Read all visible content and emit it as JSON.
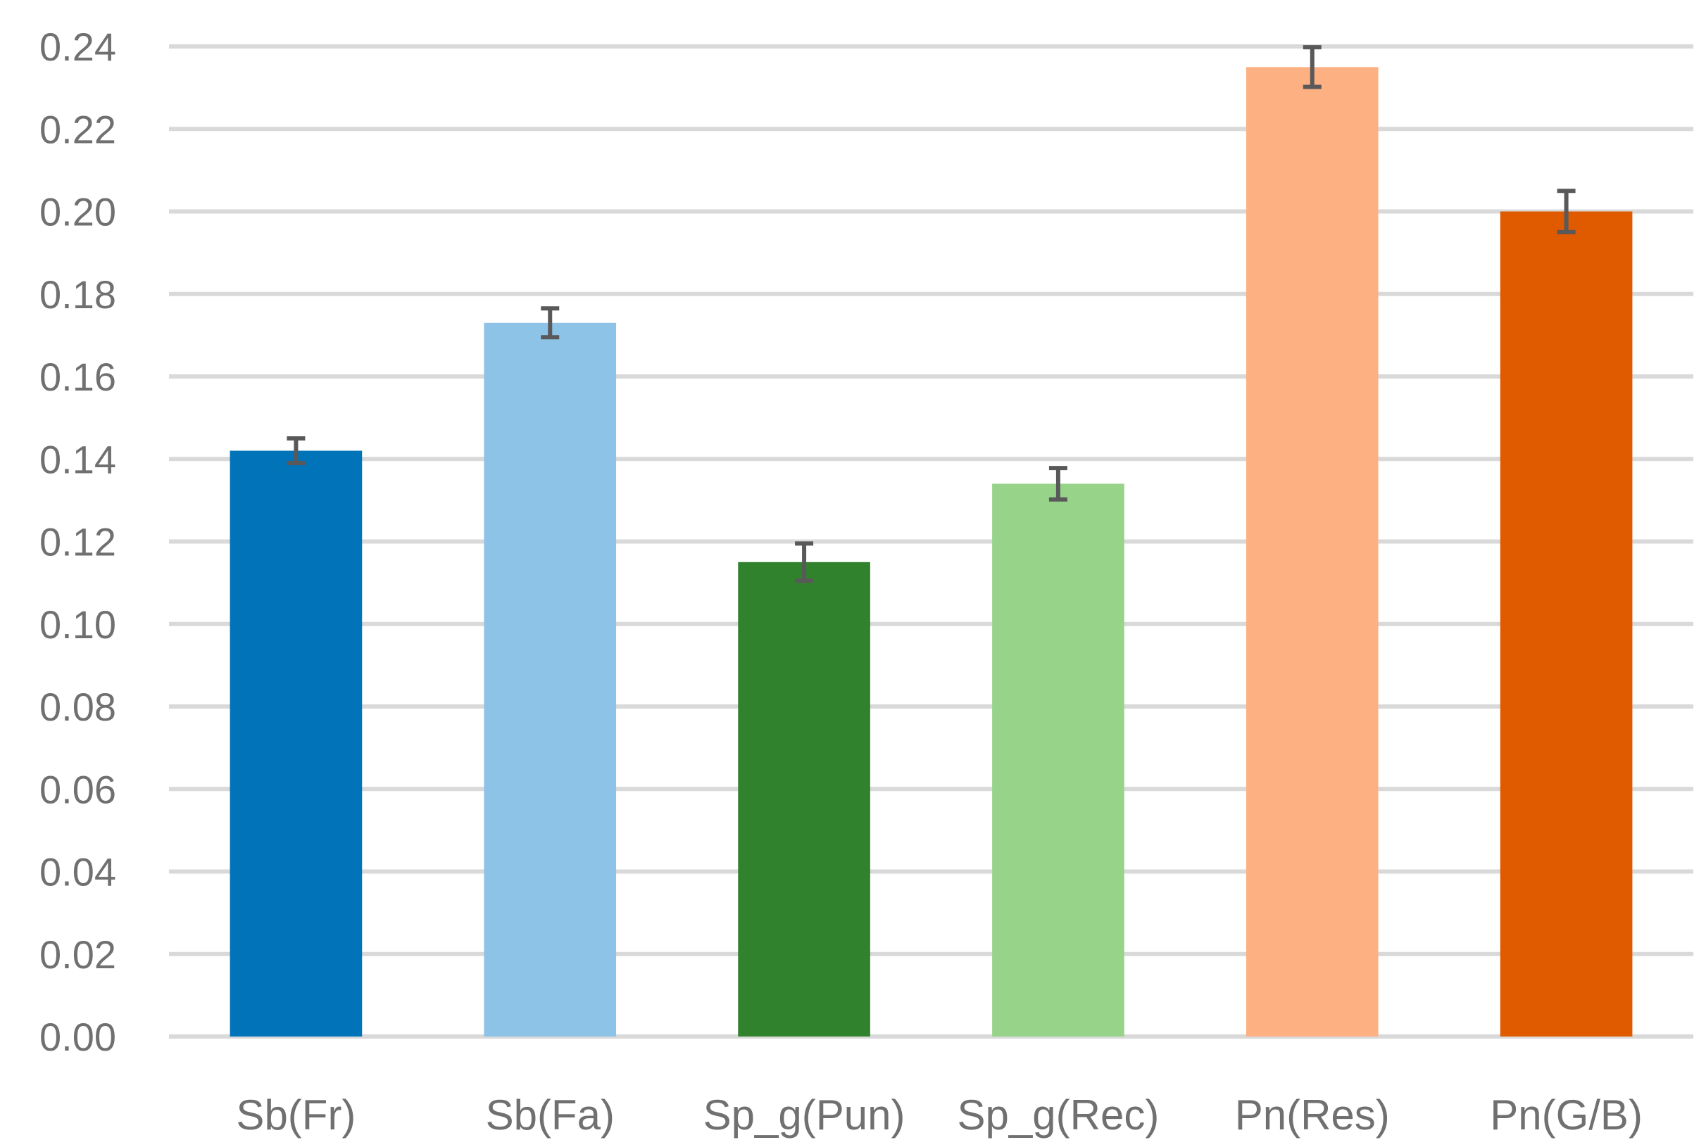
{
  "chart_data": {
    "type": "bar",
    "title": "",
    "xlabel": "",
    "ylabel": "",
    "ylim": [
      0,
      0.24
    ],
    "ytick_step": 0.02,
    "grid": true,
    "legend": "none",
    "categories": [
      "Sb(Fr)",
      "Sb(Fa)",
      "Sp_g(Pun)",
      "Sp_g(Rec)",
      "Pn(Res)",
      "Pn(G/B)"
    ],
    "values": [
      0.142,
      0.173,
      0.115,
      0.134,
      0.235,
      0.2
    ],
    "errors": [
      0.003,
      0.0035,
      0.0045,
      0.0038,
      0.0048,
      0.005
    ],
    "colors": [
      "#0173b9",
      "#8dc3e6",
      "#31822d",
      "#98d38a",
      "#fdb183",
      "#e05a00"
    ],
    "error_color": "#595959",
    "grid_color": "#d9d9d9"
  }
}
